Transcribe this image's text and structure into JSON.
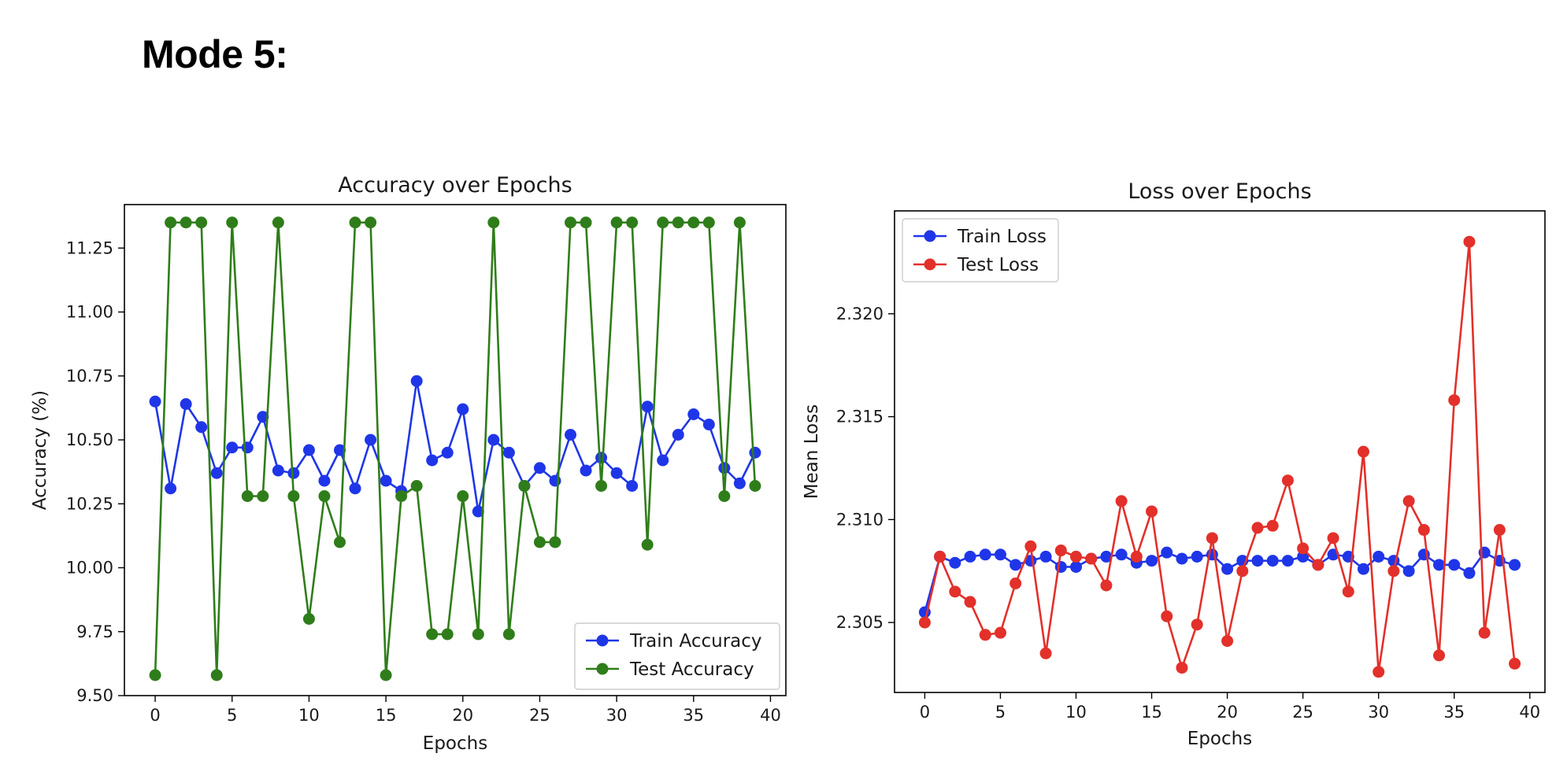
{
  "heading": "Mode 5:",
  "colors": {
    "train_accuracy": "#1f36e8",
    "test_accuracy": "#2f7d1a",
    "train_loss": "#1f36e8",
    "test_loss": "#e3302a"
  },
  "chart_data": [
    {
      "type": "line",
      "title": "Accuracy over Epochs",
      "xlabel": "Epochs",
      "ylabel": "Accuracy (%)",
      "xlim": [
        -2,
        41
      ],
      "ylim": [
        9.5,
        11.42
      ],
      "xticks": [
        0,
        5,
        10,
        15,
        20,
        25,
        30,
        35,
        40
      ],
      "yticks": [
        9.5,
        9.75,
        10.0,
        10.25,
        10.5,
        10.75,
        11.0,
        11.25
      ],
      "ytick_labels": [
        "9.50",
        "9.75",
        "10.00",
        "10.25",
        "10.50",
        "10.75",
        "11.00",
        "11.25"
      ],
      "legend_position": "lower right",
      "x": [
        0,
        1,
        2,
        3,
        4,
        5,
        6,
        7,
        8,
        9,
        10,
        11,
        12,
        13,
        14,
        15,
        16,
        17,
        18,
        19,
        20,
        21,
        22,
        23,
        24,
        25,
        26,
        27,
        28,
        29,
        30,
        31,
        32,
        33,
        34,
        35,
        36,
        37,
        38,
        39
      ],
      "series": [
        {
          "name": "Train Accuracy",
          "color_key": "train_accuracy",
          "values": [
            10.65,
            10.31,
            10.64,
            10.55,
            10.37,
            10.47,
            10.47,
            10.59,
            10.38,
            10.37,
            10.46,
            10.34,
            10.46,
            10.31,
            10.5,
            10.34,
            10.3,
            10.73,
            10.42,
            10.45,
            10.62,
            10.22,
            10.5,
            10.45,
            10.32,
            10.39,
            10.34,
            10.52,
            10.38,
            10.43,
            10.37,
            10.32,
            10.63,
            10.42,
            10.52,
            10.6,
            10.56,
            10.39,
            10.33,
            10.45
          ]
        },
        {
          "name": "Test Accuracy",
          "color_key": "test_accuracy",
          "values": [
            9.58,
            11.35,
            11.35,
            11.35,
            9.58,
            11.35,
            10.28,
            10.28,
            11.35,
            10.28,
            9.8,
            10.28,
            10.1,
            11.35,
            11.35,
            9.58,
            10.28,
            10.32,
            9.74,
            9.74,
            10.28,
            9.74,
            11.35,
            9.74,
            10.32,
            10.1,
            10.1,
            11.35,
            11.35,
            10.32,
            11.35,
            11.35,
            10.09,
            11.35,
            11.35,
            11.35,
            11.35,
            10.28,
            11.35,
            10.32
          ]
        }
      ]
    },
    {
      "type": "line",
      "title": "Loss over Epochs",
      "xlabel": "Epochs",
      "ylabel": "Mean Loss",
      "xlim": [
        -2,
        41
      ],
      "ylim": [
        2.3016,
        2.325
      ],
      "xticks": [
        0,
        5,
        10,
        15,
        20,
        25,
        30,
        35,
        40
      ],
      "yticks": [
        2.305,
        2.31,
        2.315,
        2.32
      ],
      "ytick_labels": [
        "2.305",
        "2.310",
        "2.315",
        "2.320"
      ],
      "legend_position": "upper left",
      "x": [
        0,
        1,
        2,
        3,
        4,
        5,
        6,
        7,
        8,
        9,
        10,
        11,
        12,
        13,
        14,
        15,
        16,
        17,
        18,
        19,
        20,
        21,
        22,
        23,
        24,
        25,
        26,
        27,
        28,
        29,
        30,
        31,
        32,
        33,
        34,
        35,
        36,
        37,
        38,
        39
      ],
      "series": [
        {
          "name": "Train Loss",
          "color_key": "train_loss",
          "values": [
            2.3055,
            2.3082,
            2.3079,
            2.3082,
            2.3083,
            2.3083,
            2.3078,
            2.308,
            2.3082,
            2.3077,
            2.3077,
            2.3081,
            2.3082,
            2.3083,
            2.3079,
            2.308,
            2.3084,
            2.3081,
            2.3082,
            2.3083,
            2.3076,
            2.308,
            2.308,
            2.308,
            2.308,
            2.3082,
            2.3078,
            2.3083,
            2.3082,
            2.3076,
            2.3082,
            2.308,
            2.3075,
            2.3083,
            2.3078,
            2.3078,
            2.3074,
            2.3084,
            2.308,
            2.3078
          ]
        },
        {
          "name": "Test Loss",
          "color_key": "test_loss",
          "values": [
            2.305,
            2.3082,
            2.3065,
            2.306,
            2.3044,
            2.3045,
            2.3069,
            2.3087,
            2.3035,
            2.3085,
            2.3082,
            2.3081,
            2.3068,
            2.3109,
            2.3082,
            2.3104,
            2.3053,
            2.3028,
            2.3049,
            2.3091,
            2.3041,
            2.3075,
            2.3096,
            2.3097,
            2.3119,
            2.3086,
            2.3078,
            2.3091,
            2.3065,
            2.3133,
            2.3026,
            2.3075,
            2.3109,
            2.3095,
            2.3034,
            2.3158,
            2.3235,
            2.3045,
            2.3095,
            2.303
          ]
        }
      ]
    }
  ]
}
